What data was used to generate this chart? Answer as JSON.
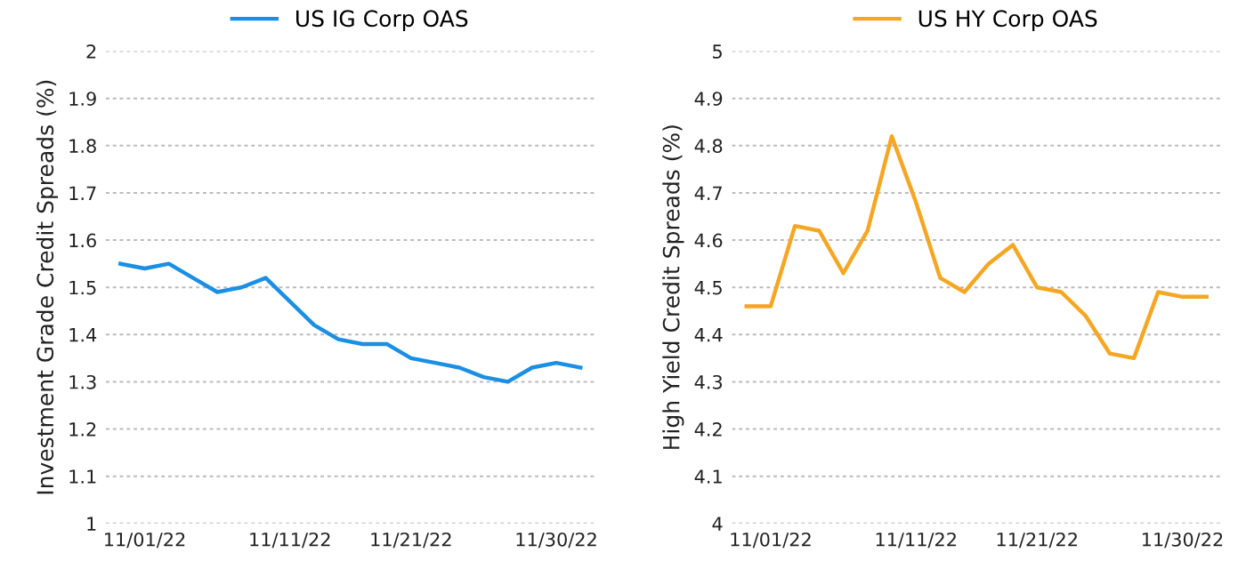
{
  "chart_data": [
    {
      "type": "line",
      "ylabel": "Investment Grade Credit Spreads (%)",
      "categories": [
        null,
        "11/01/22",
        null,
        null,
        null,
        null,
        null,
        "11/11/22",
        null,
        null,
        null,
        null,
        "11/21/22",
        null,
        null,
        null,
        null,
        null,
        "11/30/22",
        null
      ],
      "series": [
        {
          "name": "US IG Corp OAS",
          "color": "#1a8fe3",
          "values": [
            1.55,
            1.54,
            1.55,
            1.52,
            1.49,
            1.5,
            1.52,
            1.47,
            1.42,
            1.39,
            1.38,
            1.38,
            1.35,
            1.34,
            1.33,
            1.31,
            1.3,
            1.33,
            1.34,
            1.33
          ]
        }
      ],
      "ylim": [
        1,
        2
      ],
      "yticks": [
        1,
        1.1,
        1.2,
        1.3,
        1.4,
        1.5,
        1.6,
        1.7,
        1.8,
        1.9,
        2
      ],
      "grid": "y",
      "legend": "top",
      "marker": "none",
      "line_style": "solid"
    },
    {
      "type": "line",
      "ylabel": "High Yield Credit Spreads (%)",
      "categories": [
        null,
        "11/01/22",
        null,
        null,
        null,
        null,
        null,
        "11/11/22",
        null,
        null,
        null,
        null,
        "11/21/22",
        null,
        null,
        null,
        null,
        null,
        "11/30/22",
        null
      ],
      "series": [
        {
          "name": "US HY Corp OAS",
          "color": "#f5a623",
          "values": [
            4.46,
            4.46,
            4.63,
            4.62,
            4.53,
            4.62,
            4.82,
            4.68,
            4.52,
            4.49,
            4.55,
            4.59,
            4.5,
            4.49,
            4.44,
            4.36,
            4.35,
            4.49,
            4.48,
            4.48
          ]
        }
      ],
      "ylim": [
        4,
        5
      ],
      "yticks": [
        4,
        4.1,
        4.2,
        4.3,
        4.4,
        4.5,
        4.6,
        4.7,
        4.8,
        4.9,
        5
      ],
      "grid": "y",
      "legend": "top",
      "marker": "none",
      "line_style": "solid"
    }
  ]
}
